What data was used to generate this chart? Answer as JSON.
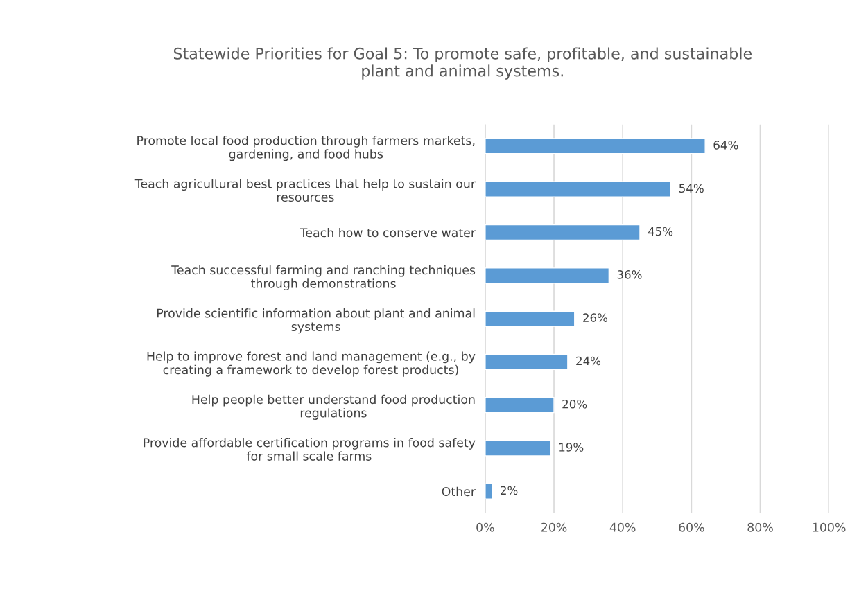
{
  "chart_data": {
    "type": "bar",
    "orientation": "horizontal",
    "title": "Statewide Priorities for Goal 5: To promote safe, profitable, and sustainable\nplant and animal systems.",
    "categories": [
      "Promote local food production through farmers markets,\ngardening, and food hubs",
      "Teach agricultural best practices that help to sustain our\nresources",
      "Teach how to conserve water",
      "Teach successful farming and ranching techniques\nthrough demonstrations",
      "Provide scientific information about plant and animal\nsystems",
      "Help to improve forest and land management (e.g., by\ncreating a framework to develop forest products)",
      "Help people better understand food production\nregulations",
      "Provide affordable certification programs in food safety\nfor small scale farms",
      "Other"
    ],
    "values": [
      64,
      54,
      45,
      36,
      26,
      24,
      20,
      19,
      2
    ],
    "value_labels": [
      "64%",
      "54%",
      "45%",
      "36%",
      "26%",
      "24%",
      "20%",
      "19%",
      "2%"
    ],
    "color": "#5b9bd5",
    "xlim": [
      0,
      100
    ],
    "xticks": [
      {
        "value": 0,
        "label": "0%"
      },
      {
        "value": 20,
        "label": "20%"
      },
      {
        "value": 40,
        "label": "40%"
      },
      {
        "value": 60,
        "label": "60%"
      },
      {
        "value": 80,
        "label": "80%"
      },
      {
        "value": 100,
        "label": "100%"
      }
    ],
    "grid": "x"
  }
}
